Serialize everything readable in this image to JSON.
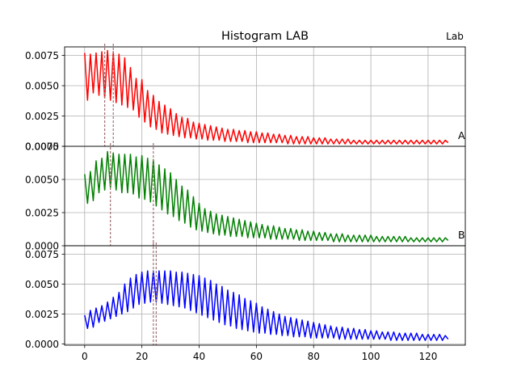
{
  "title": "Histogram LAB",
  "corner_label": "Lab",
  "chart_data": {
    "type": "line",
    "xlim": [
      -7,
      133
    ],
    "x_ticks": [
      0,
      20,
      40,
      60,
      80,
      100,
      120
    ],
    "grid": true,
    "panels": [
      {
        "label": "A",
        "color": "#ff0000",
        "ylim": [
          0,
          0.0082
        ],
        "y_ticks": [
          0,
          0.0025,
          0.005,
          0.0075
        ],
        "y_tick_labels": [
          "0.0000",
          "0.0025",
          "0.0050",
          "0.0075"
        ],
        "vlines": [
          7,
          10
        ],
        "peaks": [
          0.0077,
          0.0076,
          0.0077,
          0.0078,
          0.0079,
          0.0078,
          0.0076,
          0.0073,
          0.0065,
          0.0056,
          0.0055,
          0.0046,
          0.0042,
          0.0037,
          0.0034,
          0.0031,
          0.0027,
          0.0024,
          0.0023,
          0.002,
          0.0019,
          0.0018,
          0.0017,
          0.0016,
          0.0015,
          0.0014,
          0.0014,
          0.0013,
          0.0013,
          0.0012,
          0.0012,
          0.0011,
          0.0011,
          0.001,
          0.001,
          0.0009,
          0.0009,
          0.0008,
          0.0008,
          0.0008,
          0.0007,
          0.0007,
          0.0007,
          0.0006,
          0.0006,
          0.0006,
          0.0006,
          0.0005,
          0.0005,
          0.0005,
          0.0005,
          0.0005,
          0.0005,
          0.0005,
          0.0005,
          0.0005,
          0.0005,
          0.0005,
          0.0005,
          0.0005,
          0.0005,
          0.0005,
          0.0005,
          0.0005
        ],
        "troughs": [
          0.0038,
          0.0044,
          0.0042,
          0.004,
          0.0038,
          0.0036,
          0.0034,
          0.0032,
          0.003,
          0.0024,
          0.002,
          0.0016,
          0.0014,
          0.0011,
          0.001,
          0.0009,
          0.0008,
          0.0007,
          0.0007,
          0.0006,
          0.0006,
          0.0005,
          0.0005,
          0.0005,
          0.0004,
          0.0004,
          0.0004,
          0.0004,
          0.0003,
          0.0003,
          0.0003,
          0.0003,
          0.0003,
          0.0003,
          0.0003,
          0.0002,
          0.0002,
          0.0002,
          0.0002,
          0.0002,
          0.0002,
          0.0002,
          0.0002,
          0.0002,
          0.0002,
          0.0002,
          0.0002,
          0.0002,
          0.0002,
          0.0002,
          0.0002,
          0.0002,
          0.0002,
          0.0002,
          0.0002,
          0.0002,
          0.0002,
          0.0002,
          0.0002,
          0.0002,
          0.0002,
          0.0002,
          0.0002,
          0.0003
        ]
      },
      {
        "label": "B",
        "color": "#008000",
        "ylim": [
          0,
          0.0075
        ],
        "y_ticks": [
          0,
          0.0025,
          0.005,
          0.0075
        ],
        "y_tick_labels": [
          "0.0000",
          "0.0025",
          "0.0050",
          "0.0075"
        ],
        "vlines": [
          9,
          24
        ],
        "peaks": [
          0.0054,
          0.0056,
          0.0064,
          0.0066,
          0.0071,
          0.007,
          0.0069,
          0.0069,
          0.0069,
          0.0067,
          0.0068,
          0.0066,
          0.0065,
          0.0061,
          0.0058,
          0.0055,
          0.005,
          0.0045,
          0.0042,
          0.0037,
          0.0032,
          0.0028,
          0.0026,
          0.0024,
          0.0023,
          0.0022,
          0.0021,
          0.002,
          0.0019,
          0.0018,
          0.0017,
          0.0016,
          0.0015,
          0.0015,
          0.0014,
          0.0013,
          0.0013,
          0.0012,
          0.0012,
          0.0011,
          0.0011,
          0.001,
          0.001,
          0.0009,
          0.0009,
          0.0009,
          0.0008,
          0.0008,
          0.0008,
          0.0008,
          0.0008,
          0.0007,
          0.0007,
          0.0007,
          0.0007,
          0.0007,
          0.0007,
          0.0006,
          0.0006,
          0.0006,
          0.0006,
          0.0006,
          0.0006,
          0.0006
        ],
        "troughs": [
          0.0032,
          0.0034,
          0.004,
          0.0042,
          0.0044,
          0.0042,
          0.004,
          0.004,
          0.0039,
          0.0036,
          0.0035,
          0.0033,
          0.003,
          0.0027,
          0.0024,
          0.0022,
          0.0019,
          0.0017,
          0.0014,
          0.0012,
          0.0011,
          0.001,
          0.0009,
          0.0008,
          0.0008,
          0.0007,
          0.0007,
          0.0007,
          0.0006,
          0.0006,
          0.0006,
          0.0006,
          0.0005,
          0.0005,
          0.0005,
          0.0005,
          0.0005,
          0.0004,
          0.0004,
          0.0004,
          0.0004,
          0.0004,
          0.0004,
          0.0003,
          0.0003,
          0.0003,
          0.0003,
          0.0003,
          0.0003,
          0.0003,
          0.0003,
          0.0003,
          0.0003,
          0.0003,
          0.0003,
          0.0003,
          0.0003,
          0.0003,
          0.0003,
          0.0003,
          0.0003,
          0.0003,
          0.0003,
          0.0004
        ]
      },
      {
        "label": "",
        "color": "#0000ff",
        "ylim": [
          -0.0001,
          0.0082
        ],
        "y_ticks": [
          0,
          0.0025,
          0.005,
          0.0075
        ],
        "y_tick_labels": [
          "0.0000",
          "0.0025",
          "0.0050",
          "0.0075"
        ],
        "vlines": [
          24,
          25
        ],
        "peaks": [
          0.0024,
          0.0028,
          0.003,
          0.0032,
          0.0035,
          0.0039,
          0.0043,
          0.005,
          0.0055,
          0.0058,
          0.006,
          0.0061,
          0.0061,
          0.0061,
          0.0061,
          0.0061,
          0.006,
          0.006,
          0.0059,
          0.0058,
          0.0057,
          0.0055,
          0.0053,
          0.005,
          0.0048,
          0.0045,
          0.0043,
          0.0041,
          0.0038,
          0.0036,
          0.0034,
          0.0031,
          0.0029,
          0.0027,
          0.0025,
          0.0023,
          0.0022,
          0.0021,
          0.002,
          0.0019,
          0.0018,
          0.0017,
          0.0016,
          0.0015,
          0.0014,
          0.0014,
          0.0013,
          0.0013,
          0.0012,
          0.0012,
          0.0011,
          0.0011,
          0.001,
          0.001,
          0.001,
          0.0009,
          0.0009,
          0.0009,
          0.0009,
          0.0008,
          0.0008,
          0.0008,
          0.0008,
          0.0007
        ],
        "troughs": [
          0.0013,
          0.0014,
          0.0018,
          0.0019,
          0.0021,
          0.0023,
          0.0025,
          0.0027,
          0.003,
          0.0033,
          0.0034,
          0.0035,
          0.0035,
          0.0034,
          0.0033,
          0.0032,
          0.0031,
          0.003,
          0.0028,
          0.0026,
          0.0024,
          0.0022,
          0.002,
          0.0018,
          0.0016,
          0.0015,
          0.0013,
          0.0012,
          0.0011,
          0.001,
          0.0009,
          0.0009,
          0.0008,
          0.0008,
          0.0007,
          0.0007,
          0.0006,
          0.0006,
          0.0006,
          0.0005,
          0.0005,
          0.0005,
          0.0005,
          0.0005,
          0.0004,
          0.0004,
          0.0004,
          0.0004,
          0.0004,
          0.0004,
          0.0004,
          0.0004,
          0.0004,
          0.0003,
          0.0003,
          0.0003,
          0.0003,
          0.0003,
          0.0003,
          0.0003,
          0.0003,
          0.0003,
          0.0003,
          0.0004
        ]
      }
    ]
  }
}
